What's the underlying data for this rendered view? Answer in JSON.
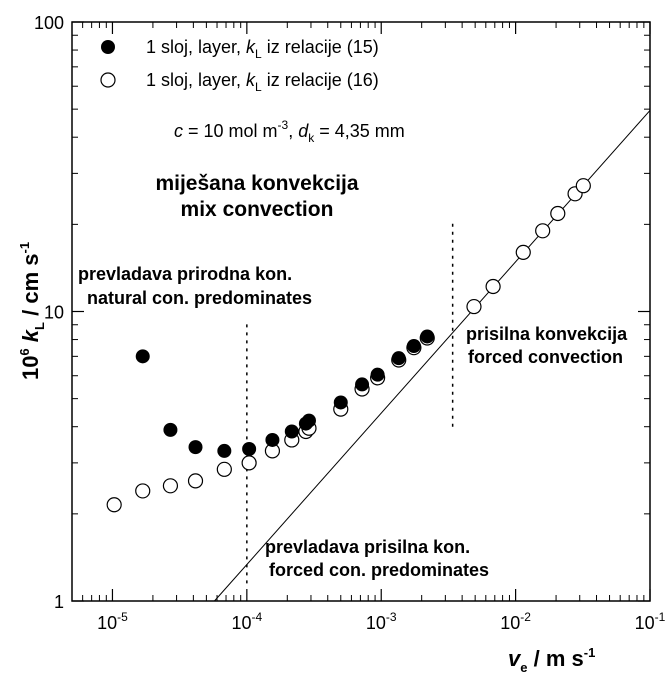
{
  "chart_data": {
    "type": "scatter",
    "x_scale": "log",
    "y_scale": "log",
    "xlim": [
      5e-06,
      0.1
    ],
    "ylim": [
      1,
      100
    ],
    "grid": false,
    "legend_position": "top-left",
    "xlabel": {
      "main": "v",
      "sub": "e",
      "rest": " / m s",
      "sup": "-1"
    },
    "ylabel": {
      "prefix": "10",
      "prefix_sup": "6",
      "k": "k",
      "k_sub": "L",
      "rest": " / cm s",
      "sup": "-1"
    },
    "x_ticks": [
      {
        "value": 1e-05,
        "base": "10",
        "exp": "-5"
      },
      {
        "value": 0.0001,
        "base": "10",
        "exp": "-4"
      },
      {
        "value": 0.001,
        "base": "10",
        "exp": "-3"
      },
      {
        "value": 0.01,
        "base": "10",
        "exp": "-2"
      },
      {
        "value": 0.1,
        "base": "10",
        "exp": "-1"
      }
    ],
    "y_ticks": [
      {
        "value": 1,
        "label": "1"
      },
      {
        "value": 10,
        "label": "10"
      },
      {
        "value": 100,
        "label": "100"
      }
    ],
    "series": [
      {
        "name": "1 sloj, layer, kL iz relacije (15)",
        "legend": {
          "pre": "1 sloj, layer, ",
          "k": "k",
          "sub": "L",
          "post": " iz relacije (15)"
        },
        "marker": "filled-circle",
        "color": "#000000",
        "points": [
          [
            1.68e-05,
            7.0
          ],
          [
            2.7e-05,
            3.9
          ],
          [
            4.15e-05,
            3.4
          ],
          [
            6.8e-05,
            3.3
          ],
          [
            0.000104,
            3.35
          ],
          [
            0.000155,
            3.6
          ],
          [
            0.000216,
            3.85
          ],
          [
            0.000275,
            4.1
          ],
          [
            0.00029,
            4.2
          ],
          [
            0.0005,
            4.85
          ],
          [
            0.00072,
            5.6
          ],
          [
            0.00094,
            6.05
          ],
          [
            0.00135,
            6.9
          ],
          [
            0.00175,
            7.6
          ],
          [
            0.0022,
            8.2
          ]
        ]
      },
      {
        "name": "1 sloj, layer, kL iz relacije (16)",
        "legend": {
          "pre": "1 sloj, layer, ",
          "k": "k",
          "sub": "L",
          "post": " iz relacije (16)"
        },
        "marker": "open-circle",
        "color": "#000000",
        "points": [
          [
            1.03e-05,
            2.15
          ],
          [
            1.68e-05,
            2.4
          ],
          [
            2.7e-05,
            2.5
          ],
          [
            4.15e-05,
            2.6
          ],
          [
            6.8e-05,
            2.85
          ],
          [
            0.000104,
            3.0
          ],
          [
            0.000155,
            3.3
          ],
          [
            0.000216,
            3.6
          ],
          [
            0.000275,
            3.85
          ],
          [
            0.00029,
            3.95
          ],
          [
            0.0005,
            4.6
          ],
          [
            0.00072,
            5.4
          ],
          [
            0.00094,
            5.9
          ],
          [
            0.00135,
            6.8
          ],
          [
            0.00175,
            7.5
          ],
          [
            0.0022,
            8.1
          ],
          [
            0.0049,
            10.4
          ],
          [
            0.0068,
            12.2
          ],
          [
            0.0114,
            16.0
          ],
          [
            0.0159,
            19.0
          ],
          [
            0.0206,
            21.8
          ],
          [
            0.0277,
            25.5
          ],
          [
            0.0319,
            27.2
          ]
        ]
      }
    ],
    "fit_line": {
      "from": [
        5.74e-05,
        1.0
      ],
      "to": [
        0.1,
        49.5
      ]
    },
    "vlines": [
      {
        "x": 0.0001,
        "y_from": 1.15,
        "y_to": 9.3
      },
      {
        "x": 0.0034,
        "y_from": 4.0,
        "y_to": 20.5
      }
    ],
    "annotations": {
      "conditions": {
        "c": "c",
        "eq1": " = 10 mol m",
        "sup1": "-3",
        "mid": ", ",
        "d": "d",
        "dsub": "k",
        "eq2": " = 4,35 mm"
      },
      "mixed": [
        "miješana konvekcija",
        "mix convection"
      ],
      "natural": [
        "prevladava prirodna kon.",
        "natural con. predominates"
      ],
      "forced_region": [
        "prisilna konvekcija",
        "forced convection"
      ],
      "forced_pred": [
        "prevladava prisilna kon.",
        "forced con. predominates"
      ]
    }
  }
}
